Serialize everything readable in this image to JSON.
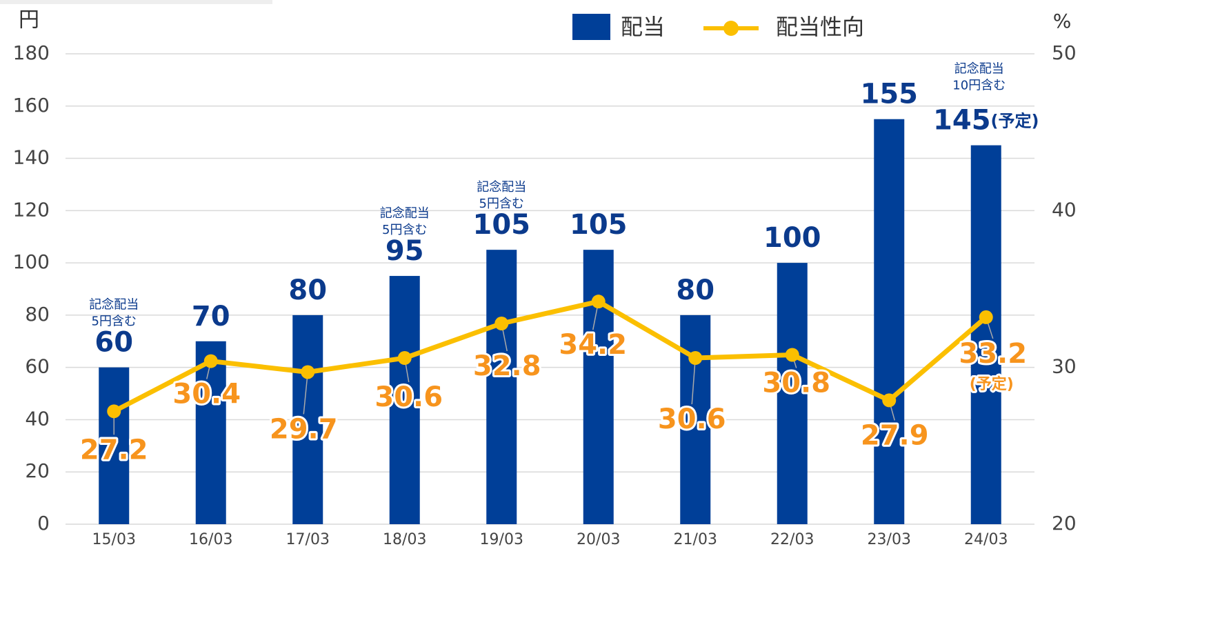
{
  "chart_data": {
    "type": "bar_line",
    "y_unit": "円",
    "y2_unit": "%",
    "categories": [
      "15/03",
      "16/03",
      "17/03",
      "18/03",
      "19/03",
      "20/03",
      "21/03",
      "22/03",
      "23/03",
      "24/03"
    ],
    "series": [
      {
        "name": "配当",
        "type": "bar",
        "color": "#003f98",
        "label_color": "#0b3a8c",
        "values": [
          60,
          70,
          80,
          95,
          105,
          105,
          80,
          100,
          155,
          145
        ],
        "notes": [
          null,
          null,
          null,
          null,
          null,
          null,
          null,
          null,
          null,
          "(予定)"
        ]
      },
      {
        "name": "配当性向",
        "type": "line",
        "axis": "y2",
        "color": "#fbbf00",
        "label_color": "#f7941d",
        "values": [
          27.2,
          30.4,
          29.7,
          30.6,
          32.8,
          34.2,
          30.6,
          30.8,
          27.9,
          33.2
        ],
        "notes": [
          null,
          null,
          null,
          null,
          null,
          null,
          null,
          null,
          null,
          "(予定)"
        ]
      }
    ],
    "annotations": [
      [
        "記念配当",
        "5円含む"
      ],
      null,
      null,
      [
        "記念配当",
        "5円含む"
      ],
      [
        "記念配当",
        "5円含む"
      ],
      null,
      null,
      null,
      null,
      [
        "記念配当",
        "10円含む"
      ]
    ],
    "ylim": [
      0,
      180
    ],
    "yticks": [
      0,
      20,
      40,
      60,
      80,
      100,
      120,
      140,
      160,
      180
    ],
    "y2lim": [
      20,
      50
    ],
    "y2ticks": [
      20,
      30,
      40,
      50
    ],
    "grid": true,
    "legend": "top"
  }
}
